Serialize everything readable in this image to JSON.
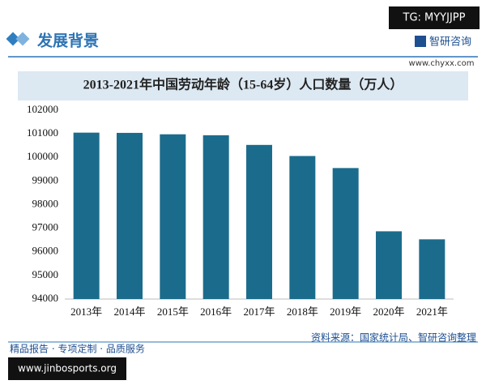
{
  "watermark_tag": "TG: MYYJJPP",
  "header": {
    "title": "发展背景",
    "brand": "智研咨询",
    "site": "www.chyxx.com"
  },
  "chart_data": {
    "type": "bar",
    "title": "2013-2021年中国劳动年龄（15-64岁）人口数量（万人）",
    "categories": [
      "2013年",
      "2014年",
      "2015年",
      "2016年",
      "2017年",
      "2018年",
      "2019年",
      "2020年",
      "2021年"
    ],
    "values": [
      101050,
      101040,
      100980,
      100940,
      100530,
      100060,
      99550,
      96870,
      96530
    ],
    "color": "#1b6c8c",
    "ylim": [
      94000,
      102000
    ],
    "yticks": [
      94000,
      95000,
      96000,
      97000,
      98000,
      99000,
      100000,
      101000,
      102000
    ],
    "grid": false
  },
  "footer": {
    "slogan": "精品报告 · 专项定制 · 品质服务",
    "source": "资料来源：国家统计局、智研咨询整理",
    "url": "www.jinbosports.org"
  }
}
